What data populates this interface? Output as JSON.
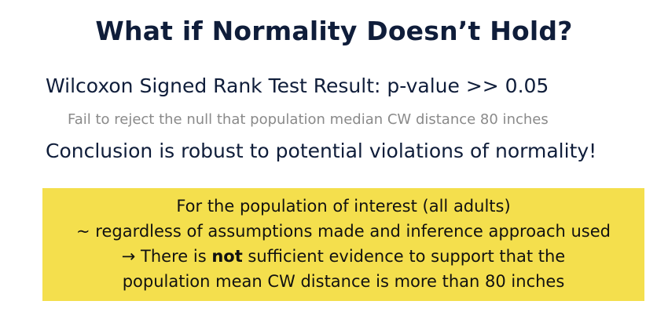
{
  "slide": {
    "title": "What if Normality Doesn’t Hold?",
    "result": "Wilcoxon Signed Rank Test Result: p-value >> 0.05",
    "subpoint": "Fail to reject the null that population median CW distance 80 inches",
    "conclusion": "Conclusion is robust to potential violations of normality!",
    "callout": {
      "line1": "For the population of interest (all adults)",
      "line2": "~ regardless of assumptions made and inference approach used",
      "line3_prefix": "→ There is ",
      "line3_bold": "not",
      "line3_suffix": " sufficient evidence to support that the",
      "line4": "population mean CW distance is more than 80 inches",
      "background_color": "#f4df4d"
    }
  }
}
